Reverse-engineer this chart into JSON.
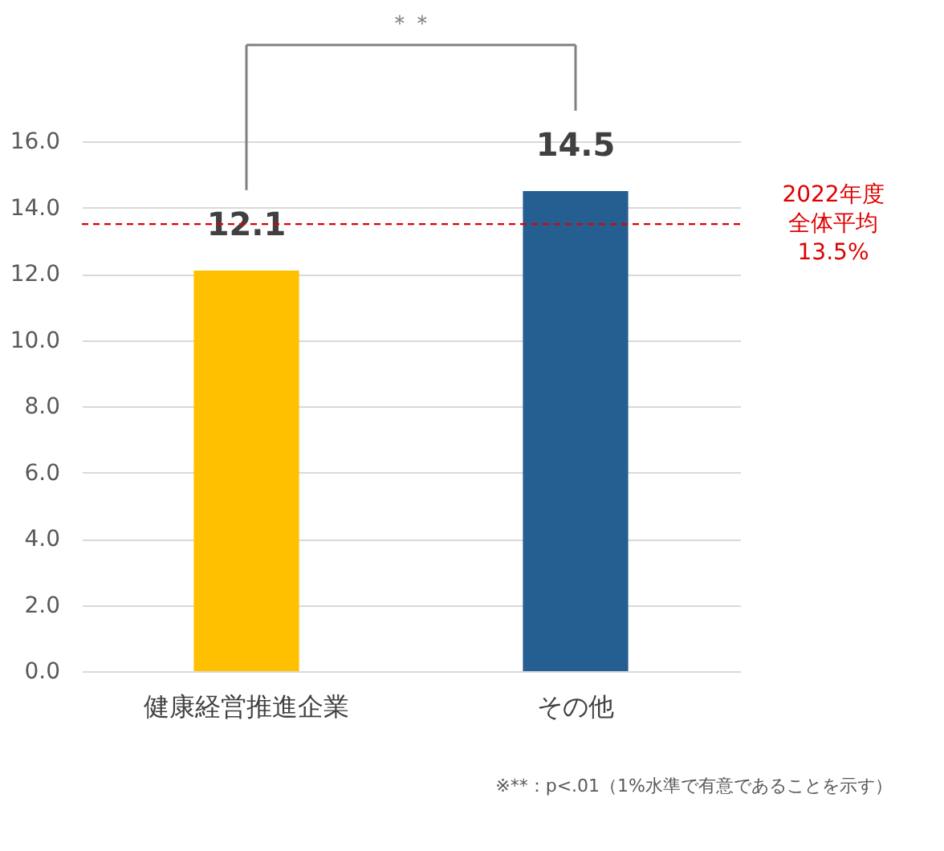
{
  "chart_data": {
    "type": "bar",
    "categories": [
      "健康経営推進企業",
      "その他"
    ],
    "values": [
      12.1,
      14.5
    ],
    "colors": [
      "#ffc000",
      "#255e91"
    ],
    "data_labels": true,
    "ylim": [
      0,
      16
    ],
    "yticks": [
      {
        "value": 0,
        "label": "0.0"
      },
      {
        "value": 2,
        "label": "2.0"
      },
      {
        "value": 4,
        "label": "4.0"
      },
      {
        "value": 6,
        "label": "6.0"
      },
      {
        "value": 8,
        "label": "8.0"
      },
      {
        "value": 10,
        "label": "10.0"
      },
      {
        "value": 12,
        "label": "12.0"
      },
      {
        "value": 14,
        "label": "14.0"
      },
      {
        "value": 16,
        "label": "16.0"
      }
    ],
    "grid": "y",
    "ref_lines": [
      {
        "axis": "y",
        "value": 13.5,
        "label": "2022年度全体平均13.5%",
        "color": "#e00000",
        "line_style": "dashed"
      }
    ],
    "annotations": [
      "＊＊",
      "※**：p<.01（1%水準で有意であることを示す）"
    ]
  }
}
